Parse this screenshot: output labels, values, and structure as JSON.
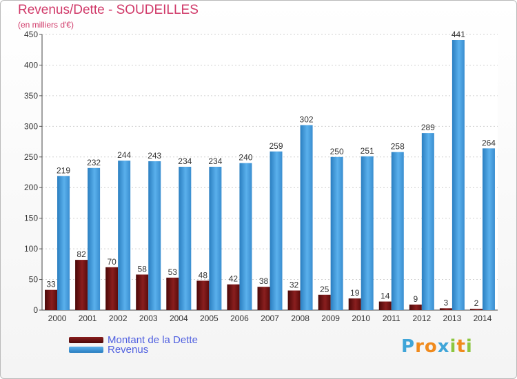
{
  "header": {
    "title": "Revenus/Dette - SOUDEILLES",
    "subtitle": "(en milliers d'€)"
  },
  "chart_data": {
    "type": "bar",
    "title": "Revenus/Dette - SOUDEILLES",
    "subtitle": "(en milliers d'€)",
    "xlabel": "",
    "ylabel": "",
    "categories": [
      "2000",
      "2001",
      "2002",
      "2003",
      "2004",
      "2005",
      "2006",
      "2007",
      "2008",
      "2009",
      "2010",
      "2011",
      "2012",
      "2013",
      "2014"
    ],
    "series": [
      {
        "name": "Montant de la Dette",
        "color": "#7a1414",
        "values": [
          33,
          82,
          70,
          58,
          53,
          48,
          42,
          38,
          32,
          25,
          19,
          14,
          9,
          3,
          2
        ]
      },
      {
        "name": "Revenus",
        "color": "#3d96d6",
        "values": [
          219,
          232,
          244,
          243,
          234,
          234,
          240,
          259,
          302,
          250,
          251,
          258,
          289,
          441,
          264
        ]
      }
    ],
    "ylim": [
      0,
      450
    ],
    "yticks": [
      0,
      50,
      100,
      150,
      200,
      250,
      300,
      350,
      400,
      450
    ],
    "grid": true,
    "legend": "bottom-left"
  },
  "legend": {
    "items": [
      {
        "label": "Montant de la Dette",
        "color": "#7a1414"
      },
      {
        "label": "Revenus",
        "color": "#3d96d6"
      }
    ]
  },
  "logo": {
    "letters": [
      "P",
      "r",
      "o",
      "x",
      "i",
      "t",
      "i"
    ],
    "colors": [
      "#3fa5d8",
      "#f08a1c",
      "#f08a1c",
      "#3fa5d8",
      "#8cc63f",
      "#f08a1c",
      "#8cc63f"
    ]
  }
}
